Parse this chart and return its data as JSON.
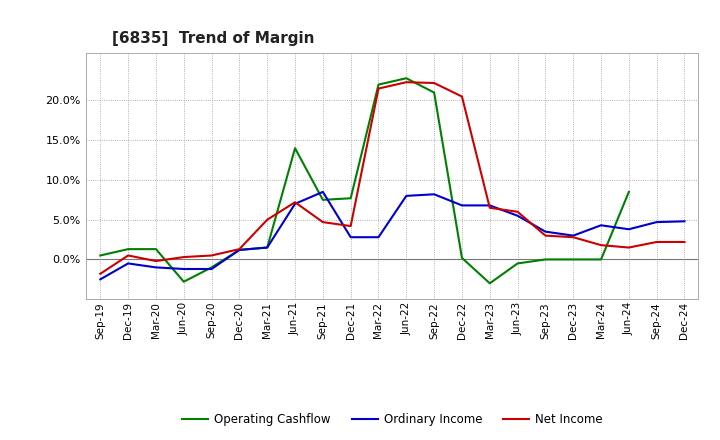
{
  "title": "[6835]  Trend of Margin",
  "x_labels": [
    "Sep-19",
    "Dec-19",
    "Mar-20",
    "Jun-20",
    "Sep-20",
    "Dec-20",
    "Mar-21",
    "Jun-21",
    "Sep-21",
    "Dec-21",
    "Mar-22",
    "Jun-22",
    "Sep-22",
    "Dec-22",
    "Mar-23",
    "Jun-23",
    "Sep-23",
    "Dec-23",
    "Mar-24",
    "Jun-24",
    "Sep-24",
    "Dec-24"
  ],
  "ordinary_income": [
    -0.025,
    -0.005,
    -0.01,
    -0.012,
    -0.012,
    0.012,
    0.015,
    0.07,
    0.085,
    0.028,
    0.028,
    0.08,
    0.082,
    0.068,
    0.068,
    0.055,
    0.035,
    0.03,
    0.043,
    0.038,
    0.047,
    0.048
  ],
  "net_income": [
    -0.018,
    0.005,
    -0.002,
    0.003,
    0.005,
    0.013,
    0.05,
    0.072,
    0.047,
    0.042,
    0.215,
    0.223,
    0.222,
    0.205,
    0.065,
    0.06,
    0.03,
    0.028,
    0.018,
    0.015,
    0.022,
    0.022
  ],
  "operating_cashflow": [
    0.005,
    0.013,
    0.013,
    -0.028,
    -0.01,
    0.012,
    0.015,
    0.14,
    0.075,
    0.077,
    0.22,
    0.228,
    0.21,
    0.002,
    -0.03,
    -0.005,
    0.0,
    0.0,
    0.0,
    0.085,
    null,
    null
  ],
  "ordinary_income_color": "#0000cc",
  "net_income_color": "#cc0000",
  "operating_cashflow_color": "#008000",
  "background_color": "#ffffff",
  "grid_color": "#999999",
  "ylim": [
    -0.05,
    0.26
  ],
  "yticks": [
    0.0,
    0.05,
    0.1,
    0.15,
    0.2
  ],
  "legend_labels": [
    "Ordinary Income",
    "Net Income",
    "Operating Cashflow"
  ]
}
